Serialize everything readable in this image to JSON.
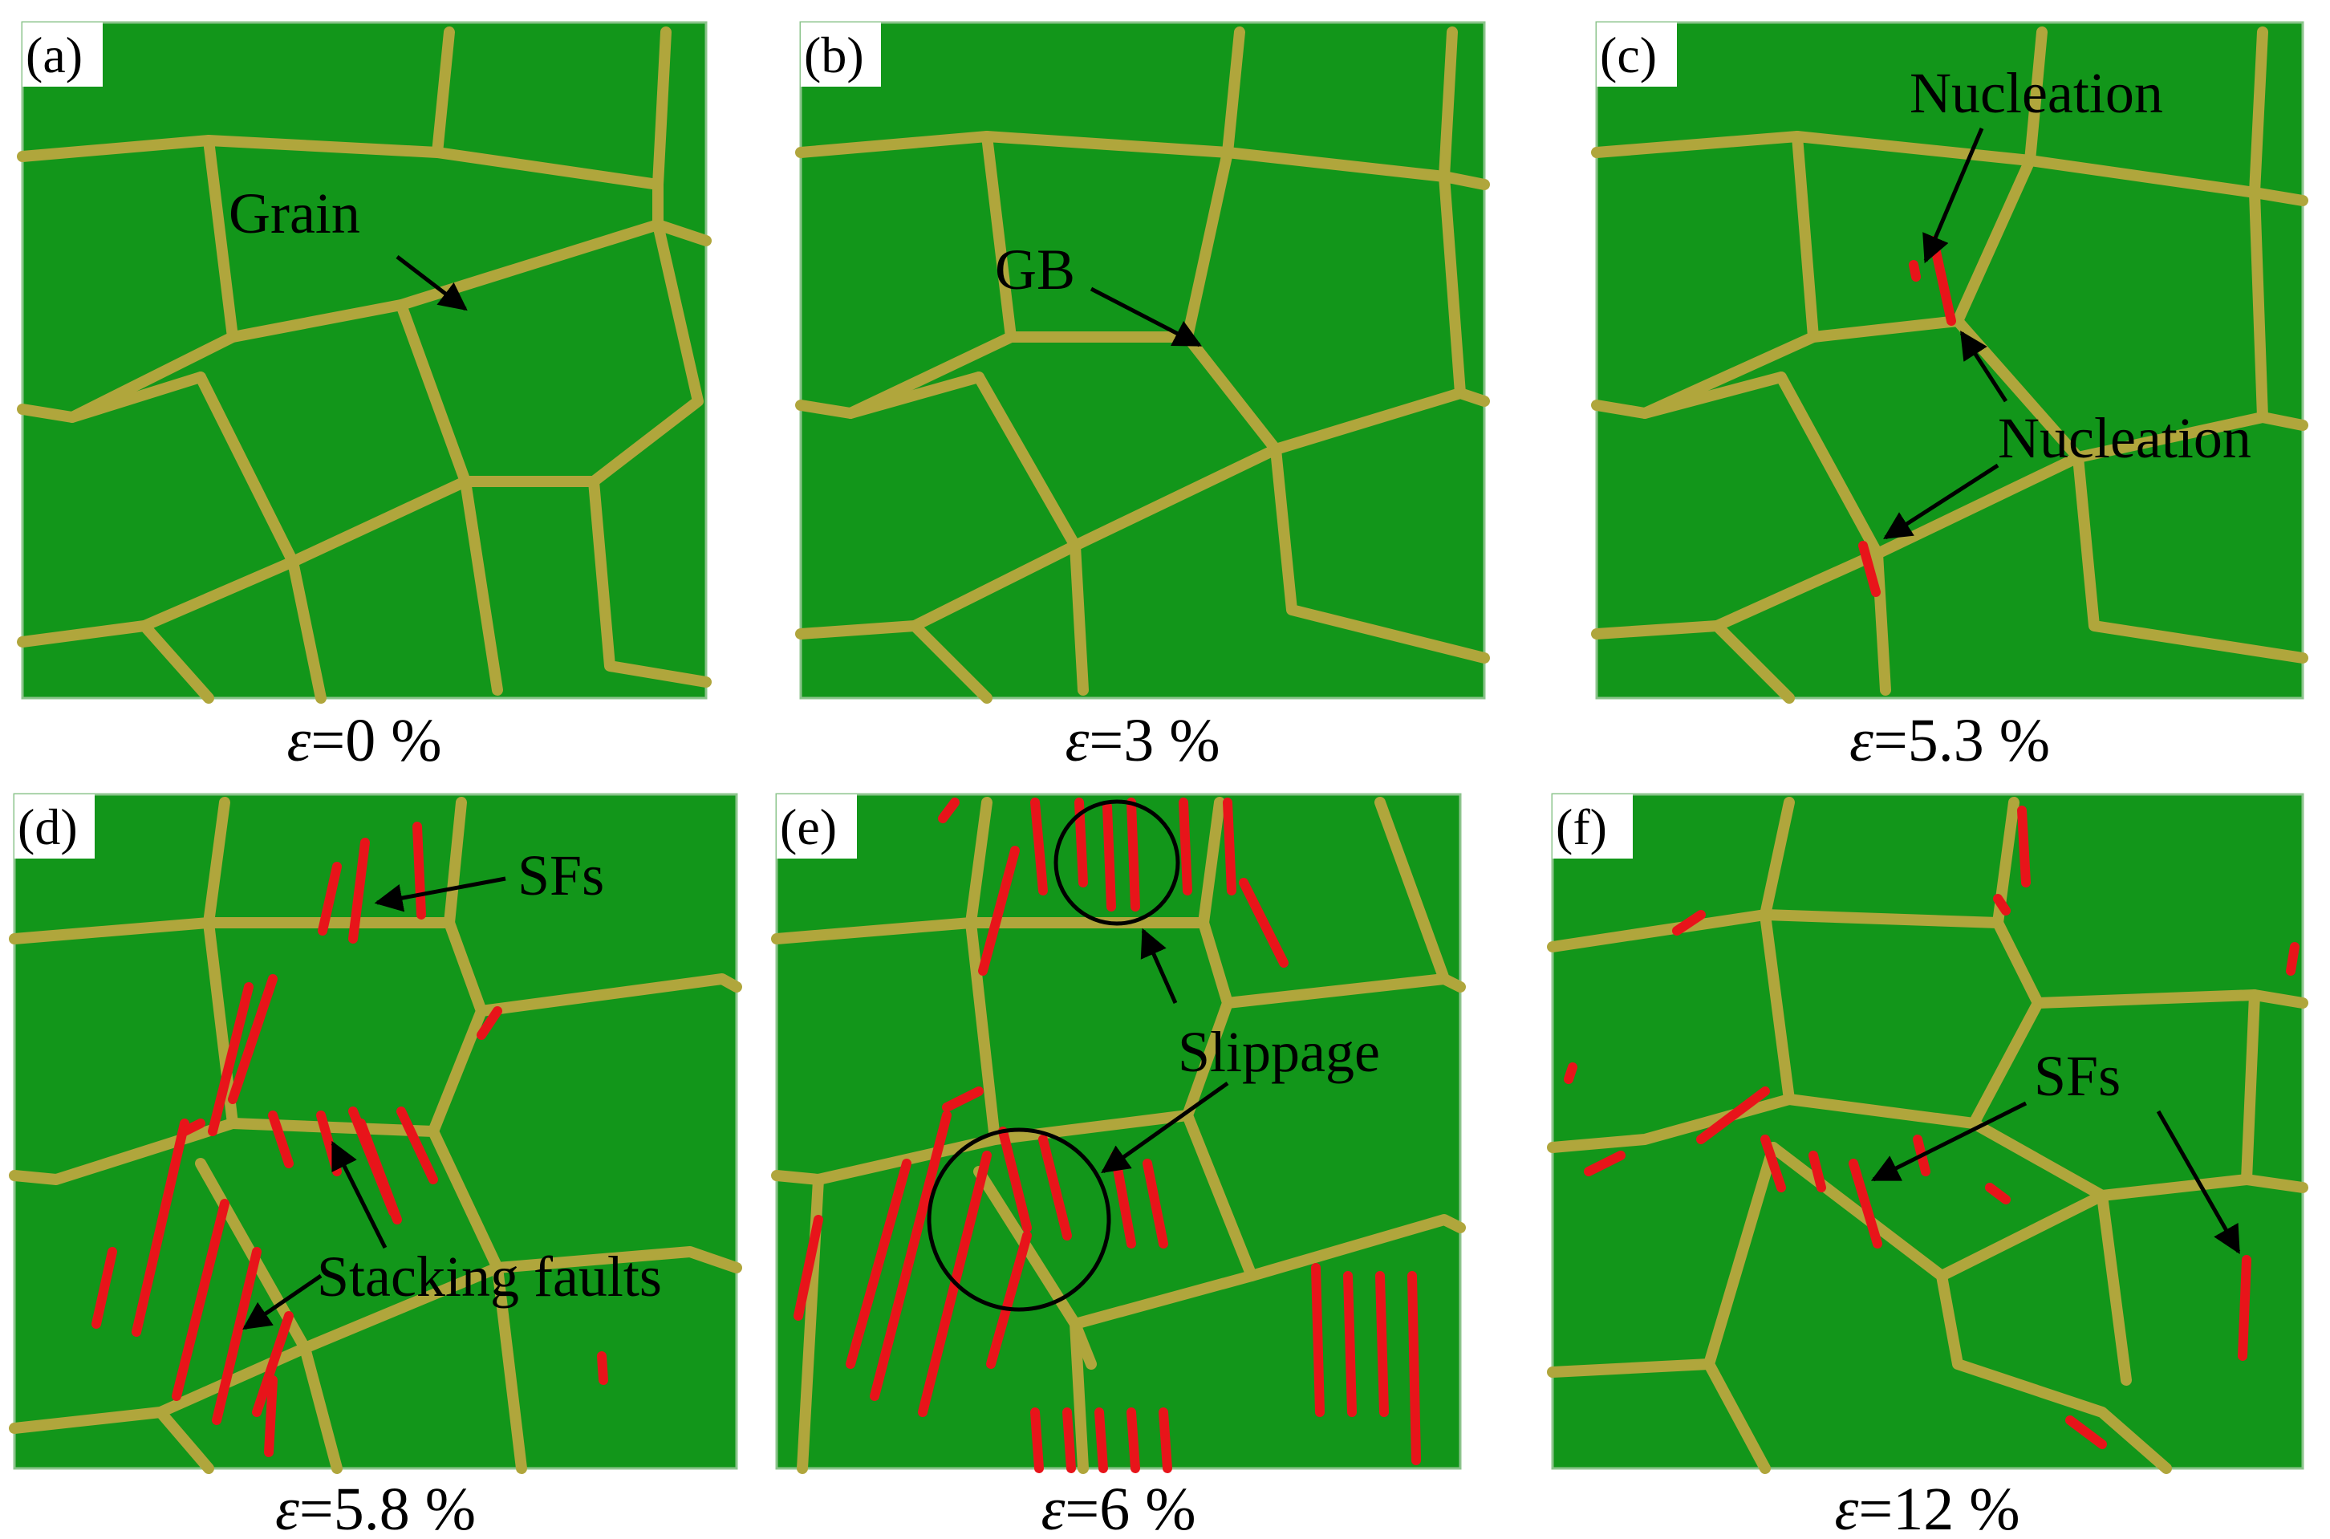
{
  "colors": {
    "grain": "#12961a",
    "grain_boundary": "#b0a63c",
    "stacking_fault": "#e8141a",
    "text": "#000000",
    "panel_border": "#8cc48c"
  },
  "panels": [
    {
      "id": "a",
      "label": "(a)",
      "caption_eps": "ε",
      "caption_value": "=0 %",
      "annotations": [
        "Grain"
      ]
    },
    {
      "id": "b",
      "label": "(b)",
      "caption_eps": "ε",
      "caption_value": "=3 %",
      "annotations": [
        "GB"
      ]
    },
    {
      "id": "c",
      "label": "(c)",
      "caption_eps": "ε",
      "caption_value": "=5.3 %",
      "annotations": [
        "Nucleation",
        "Nucleation"
      ]
    },
    {
      "id": "d",
      "label": "(d)",
      "caption_eps": "ε",
      "caption_value": "=5.8 %",
      "annotations": [
        "SFs",
        "Stacking faults"
      ]
    },
    {
      "id": "e",
      "label": "(e)",
      "caption_eps": "ε",
      "caption_value": "=6 %",
      "annotations": [
        "Slippage"
      ]
    },
    {
      "id": "f",
      "label": "(f)",
      "caption_eps": "ε",
      "caption_value": "=12 %",
      "annotations": [
        "SFs"
      ]
    }
  ]
}
